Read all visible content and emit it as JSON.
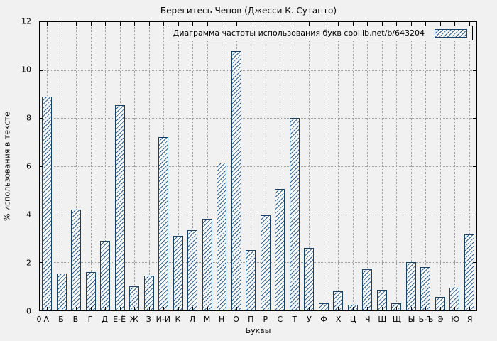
{
  "title": "Берегитесь Ченов (Джесси К. Сутанто)",
  "legend_label": "Диаграмма частоты использования букв coollib.net/b/643204",
  "axes": {
    "ylabel": "% использования в тексте",
    "xlabel": "Буквы",
    "origin_label": "0",
    "yticks": [
      0,
      2,
      4,
      6,
      8,
      10,
      12
    ]
  },
  "colors": {
    "background": "#f1f1f1",
    "grid": "#9a9a9a",
    "bar_border": "#17416b",
    "bar_hatch": "#2e6096",
    "text": "#000000"
  },
  "chart_data": {
    "type": "bar",
    "title": "Берегитесь Ченов (Джесси К. Сутанто)",
    "xlabel": "Буквы",
    "ylabel": "% использования в тексте",
    "ylim": [
      0,
      12
    ],
    "grid": true,
    "legend_position": "top-right",
    "legend": "Диаграмма частоты использования букв coollib.net/b/643204",
    "categories": [
      "А",
      "Б",
      "В",
      "Г",
      "Д",
      "Е-Ё",
      "Ж",
      "З",
      "И-Й",
      "К",
      "Л",
      "М",
      "Н",
      "О",
      "П",
      "Р",
      "С",
      "Т",
      "У",
      "Ф",
      "Х",
      "Ц",
      "Ч",
      "Ш",
      "Щ",
      "Ы",
      "Ь-Ъ",
      "Э",
      "Ю",
      "Я"
    ],
    "values": [
      8.9,
      1.55,
      4.2,
      1.6,
      2.9,
      8.55,
      1.0,
      1.45,
      7.2,
      3.1,
      3.35,
      3.8,
      6.15,
      10.8,
      2.5,
      3.95,
      5.05,
      8.0,
      2.6,
      0.3,
      0.8,
      0.25,
      1.7,
      0.85,
      0.3,
      2.0,
      1.8,
      0.55,
      0.95,
      3.15
    ]
  }
}
